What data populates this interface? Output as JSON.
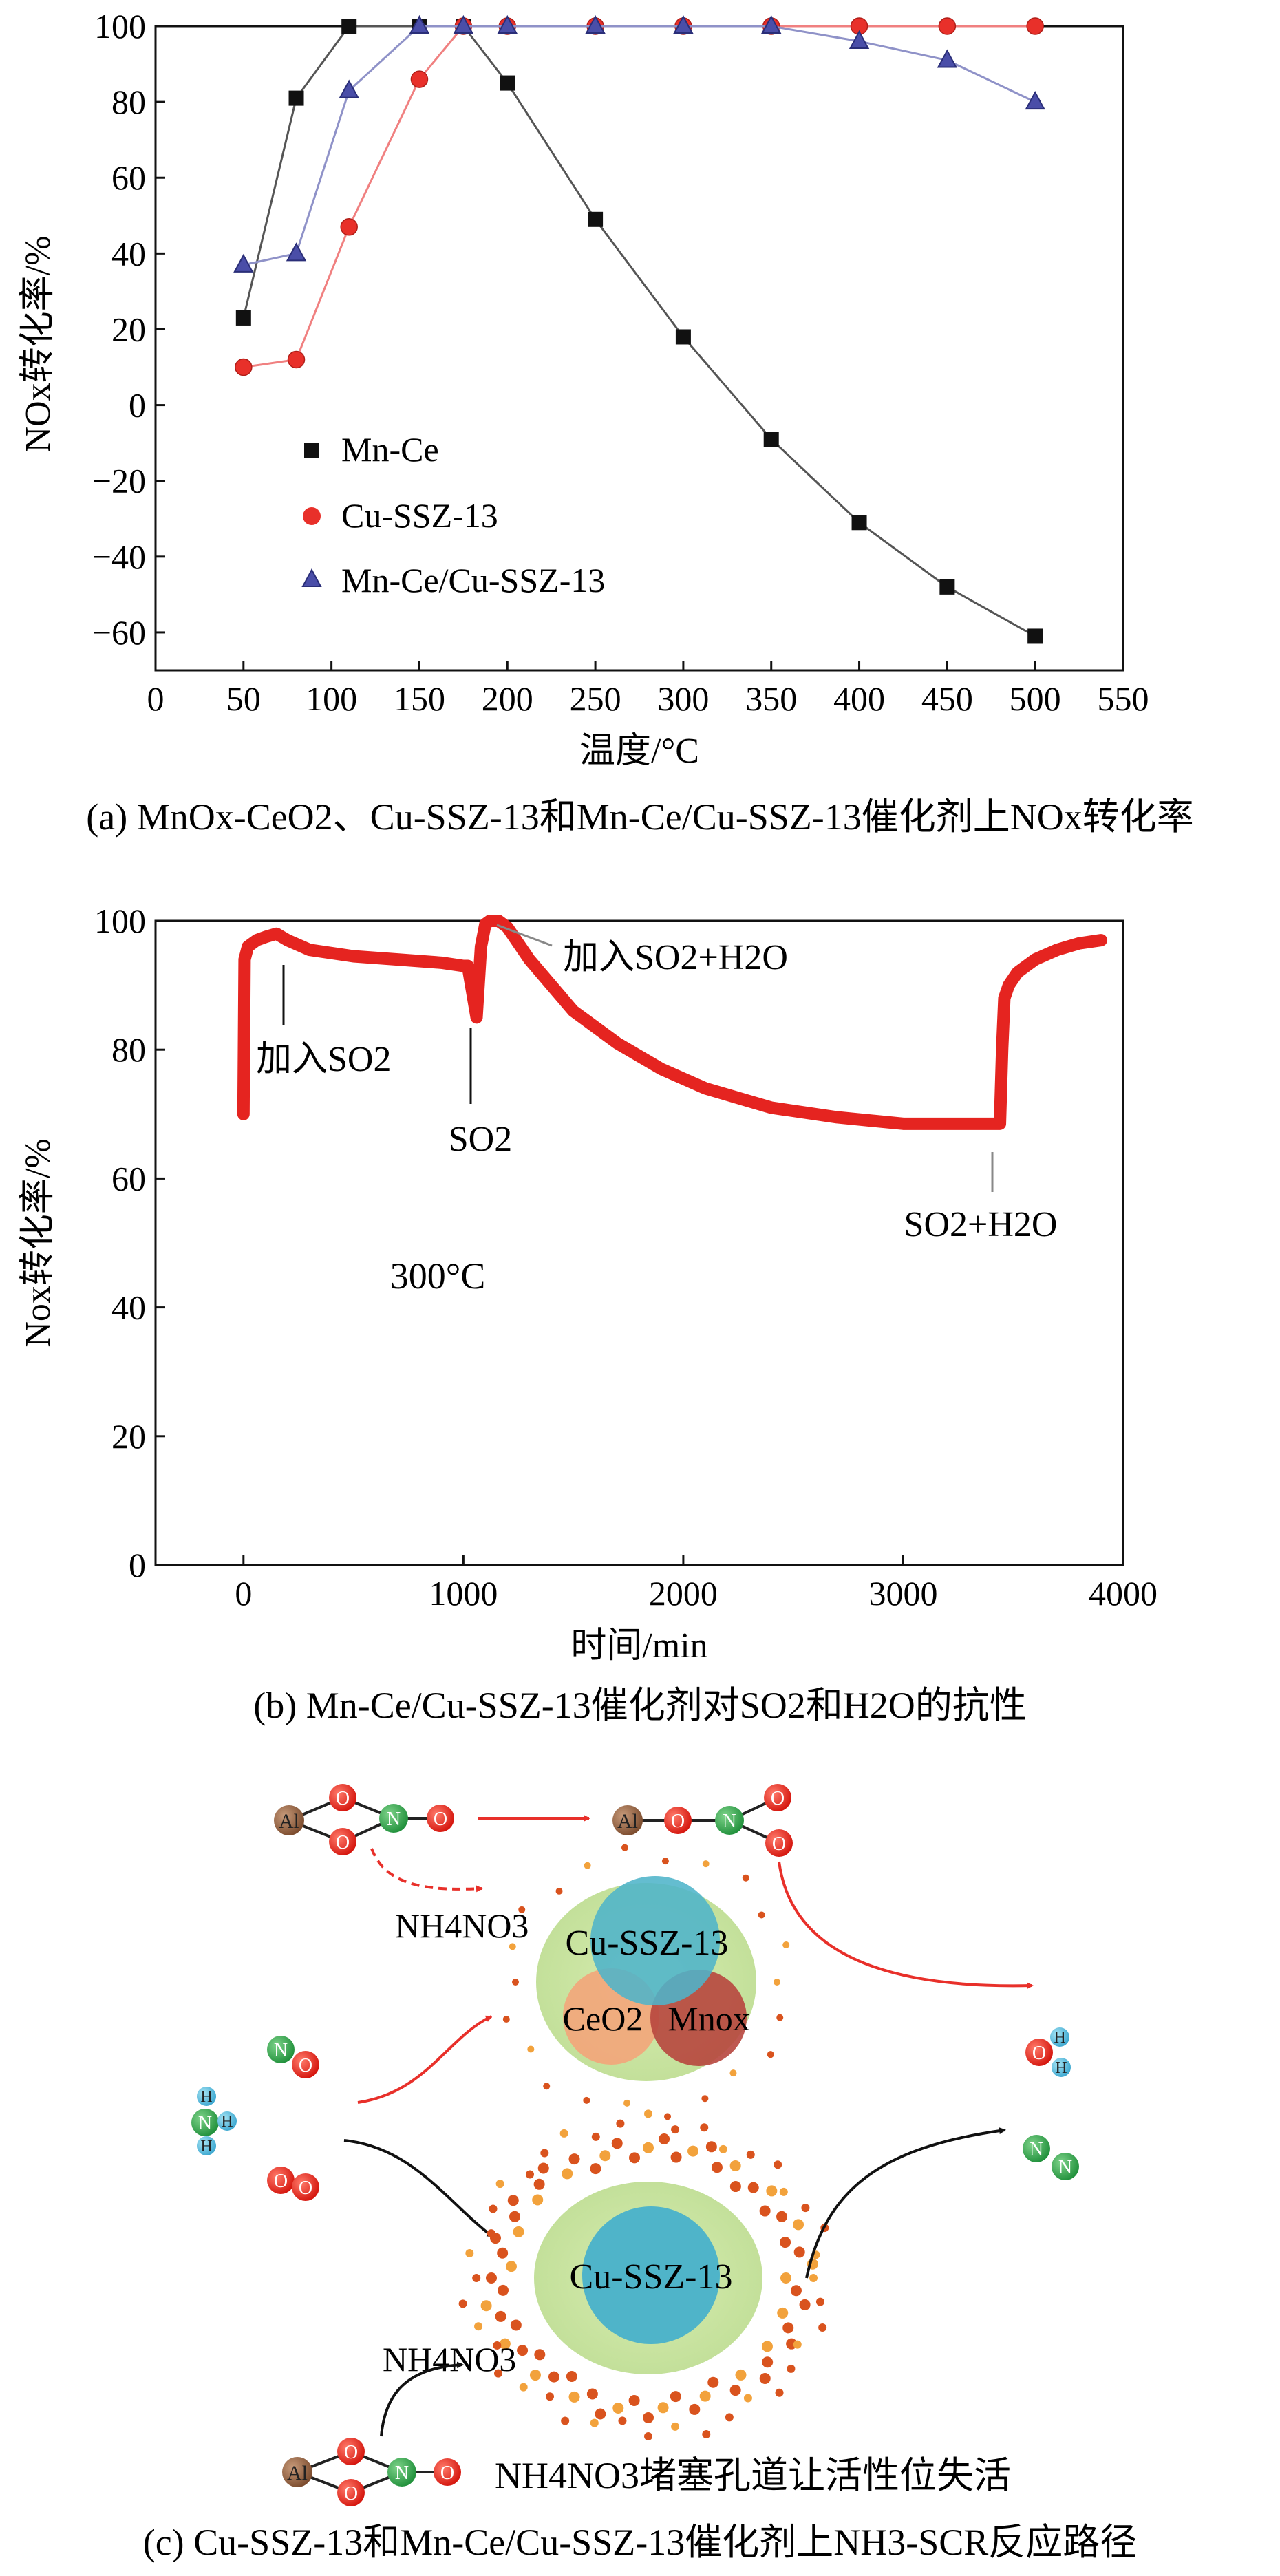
{
  "chart_data": [
    {
      "type": "line",
      "caption": "(a) MnOx-CeO2、Cu-SSZ-13和Mn-Ce/Cu-SSZ-13催化剂上NOx转化率",
      "xlabel": "温度/°C",
      "ylabel": "NOx转化率/%",
      "xlim": [
        0,
        550
      ],
      "ylim": [
        -70,
        100
      ],
      "xticks": [
        0,
        50,
        100,
        150,
        200,
        250,
        300,
        350,
        400,
        450,
        500,
        550
      ],
      "yticks": [
        -60,
        -40,
        -20,
        0,
        20,
        40,
        60,
        80,
        100
      ],
      "legend_position": "lower-left",
      "series": [
        {
          "name": "Mn-Ce",
          "marker": "square",
          "color": "#111111",
          "line": "#555555",
          "x": [
            50,
            80,
            110,
            150,
            175,
            200,
            250,
            300,
            350,
            400,
            450,
            500
          ],
          "y": [
            23,
            81,
            100,
            100,
            100,
            85,
            49,
            18,
            -9,
            -31,
            -48,
            -61
          ]
        },
        {
          "name": "Cu-SSZ-13",
          "marker": "circle",
          "color": "#e8302a",
          "line": "#f08080",
          "x": [
            50,
            80,
            110,
            150,
            175,
            200,
            250,
            300,
            350,
            400,
            450,
            500
          ],
          "y": [
            10,
            12,
            47,
            86,
            100,
            100,
            100,
            100,
            100,
            100,
            100,
            100
          ]
        },
        {
          "name": "Mn-Ce/Cu-SSZ-13",
          "marker": "triangle",
          "color": "#4a4ea8",
          "line": "#8f92c8",
          "x": [
            50,
            80,
            110,
            150,
            175,
            200,
            250,
            300,
            350,
            400,
            450,
            500
          ],
          "y": [
            37,
            40,
            83,
            100,
            100,
            100,
            100,
            100,
            100,
            96,
            91,
            80
          ]
        }
      ]
    },
    {
      "type": "line",
      "caption": "(b) Mn-Ce/Cu-SSZ-13催化剂对SO2和H2O的抗性",
      "xlabel": "时间/min",
      "ylabel": "Nox转化率/%",
      "xlim": [
        -400,
        4000
      ],
      "ylim": [
        0,
        100
      ],
      "xticks": [
        0,
        1000,
        2000,
        3000,
        4000
      ],
      "yticks": [
        0,
        20,
        40,
        60,
        80,
        100
      ],
      "temperature_label": "300°C",
      "annotations": [
        "加入SO2",
        "SO2",
        "加入SO2+H2O",
        "SO2+H2O"
      ],
      "series": [
        {
          "name": "",
          "color": "#e52420",
          "x": [
            0,
            5,
            20,
            60,
            100,
            150,
            200,
            300,
            500,
            700,
            900,
            1000,
            1020,
            1040,
            1060,
            1080,
            1100,
            1120,
            1160,
            1200,
            1300,
            1400,
            1500,
            1700,
            1900,
            2100,
            2400,
            2700,
            3000,
            3300,
            3440,
            3450,
            3460,
            3480,
            3520,
            3600,
            3700,
            3800,
            3900
          ],
          "y": [
            70,
            94,
            96,
            97,
            97.5,
            98,
            97,
            95.5,
            94.5,
            94,
            93.5,
            93,
            93,
            89,
            85,
            96,
            99.5,
            100,
            100,
            99,
            94,
            90,
            86,
            81,
            77,
            74,
            71,
            69.5,
            68.5,
            68.5,
            68.5,
            80,
            88,
            90,
            92,
            94,
            95.5,
            96.5,
            97
          ]
        }
      ]
    }
  ],
  "panel_c": {
    "caption": "(c) Cu-SSZ-13和Mn-Ce/Cu-SSZ-13催化剂上NH3-SCR反应路径",
    "blocked_text": "NH4NO3堵塞孔道让活性位失活",
    "nh4no3_top": "NH4NO3",
    "nh4no3_bottom": "NH4NO3",
    "top_core_label": "Cu-SSZ-13",
    "ceo2_label": "CeO2",
    "mnox_label": "Mnox",
    "bottom_core_label": "Cu-SSZ-13",
    "atoms": {
      "al": "Al",
      "o": "O",
      "n": "N",
      "h": "H"
    }
  }
}
